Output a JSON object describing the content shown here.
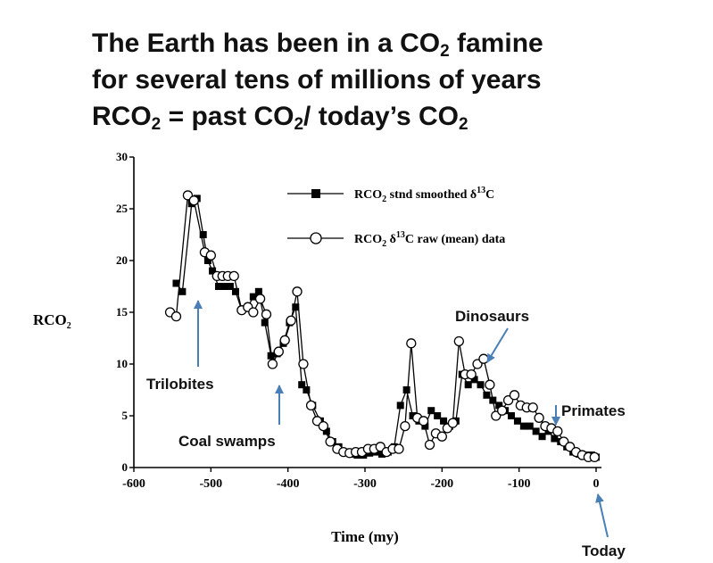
{
  "slide": {
    "title_line1": {
      "before": "The Earth has been in a CO",
      "sub": "2",
      "after": " famine"
    },
    "title_line2": "for several tens of millions of years",
    "title_line3": {
      "a": "RCO",
      "a_sub": "2",
      "b": " = past CO",
      "b_sub": "2",
      "c": "/ today’s CO",
      "c_sub": "2"
    }
  },
  "colors": {
    "title": "#111111",
    "axis": "#000000",
    "annotation_arrow": "#4a7fb5"
  },
  "chart_data": {
    "type": "line",
    "xlabel": "Time (my)",
    "ylabel": {
      "main": "RCO",
      "sub": "2"
    },
    "xlim": [
      -600,
      0
    ],
    "ylim": [
      0,
      30
    ],
    "x_ticks": [
      {
        "value": -600,
        "label": "-600"
      },
      {
        "value": -500,
        "label": "-500"
      },
      {
        "value": -400,
        "label": "-400"
      },
      {
        "value": -300,
        "label": "-300"
      },
      {
        "value": -200,
        "label": "-200"
      },
      {
        "value": -100,
        "label": "-100"
      },
      {
        "value": 0,
        "label": "0"
      }
    ],
    "y_ticks": [
      {
        "value": 0,
        "label": "0"
      },
      {
        "value": 5,
        "label": "5"
      },
      {
        "value": 10,
        "label": "10"
      },
      {
        "value": 15,
        "label": "15"
      },
      {
        "value": 20,
        "label": "20"
      },
      {
        "value": 25,
        "label": "25"
      },
      {
        "value": 30,
        "label": "30"
      }
    ],
    "grid": false,
    "legend_position": "top-right",
    "series": [
      {
        "name": "RCO2 stnd smoothed δ13C",
        "legend": {
          "a": "RCO",
          "a_sub": "2",
          "b": " stnd smoothed δ",
          "b_sup": "13",
          "c": "C"
        },
        "marker": "filled-square",
        "x": [
          -545,
          -537,
          -525,
          -518,
          -510,
          -504,
          -498,
          -490,
          -482,
          -475,
          -468,
          -460,
          -452,
          -445,
          -438,
          -430,
          -422,
          -414,
          -406,
          -398,
          -390,
          -382,
          -376,
          -368,
          -358,
          -350,
          -342,
          -334,
          -326,
          -318,
          -310,
          -302,
          -294,
          -286,
          -278,
          -270,
          -262,
          -254,
          -246,
          -238,
          -230,
          -222,
          -214,
          -206,
          -198,
          -190,
          -182,
          -174,
          -166,
          -158,
          -150,
          -142,
          -134,
          -126,
          -118,
          -110,
          -102,
          -94,
          -86,
          -78,
          -70,
          -62,
          -54,
          -46,
          -38,
          -30,
          -22,
          -14,
          -6,
          0
        ],
        "y": [
          17.8,
          17.0,
          25.5,
          26.0,
          22.5,
          20.0,
          19.0,
          17.5,
          17.5,
          17.5,
          17.0,
          15.2,
          15.5,
          16.5,
          17.0,
          14.0,
          10.8,
          11.0,
          12.0,
          14.0,
          15.5,
          8.0,
          7.5,
          6.0,
          4.5,
          3.5,
          2.5,
          2.0,
          1.5,
          1.3,
          1.2,
          1.2,
          1.4,
          1.5,
          1.3,
          1.5,
          2.0,
          6.0,
          7.5,
          5.0,
          4.5,
          4.0,
          5.5,
          5.0,
          4.5,
          4.0,
          4.5,
          9.0,
          8.0,
          8.5,
          8.0,
          7.0,
          6.5,
          6.0,
          5.5,
          5.0,
          4.5,
          4.0,
          4.0,
          3.5,
          3.0,
          3.5,
          2.8,
          2.5,
          2.0,
          1.5,
          1.3,
          1.2,
          1.2,
          1.0
        ]
      },
      {
        "name": "RCO2 δ13C raw (mean) data",
        "legend": {
          "a": "RCO",
          "a_sub": "2",
          "b": " δ",
          "b_sup": "13",
          "c": "C raw (mean) data"
        },
        "marker": "open-circle",
        "x": [
          -553,
          -545,
          -530,
          -522,
          -508,
          -500,
          -492,
          -485,
          -478,
          -470,
          -460,
          -452,
          -445,
          -436,
          -428,
          -420,
          -412,
          -404,
          -396,
          -388,
          -380,
          -370,
          -362,
          -354,
          -345,
          -336,
          -328,
          -320,
          -312,
          -304,
          -296,
          -288,
          -280,
          -272,
          -264,
          -256,
          -248,
          -240,
          -232,
          -224,
          -216,
          -208,
          -200,
          -193,
          -186,
          -178,
          -170,
          -162,
          -154,
          -146,
          -138,
          -130,
          -122,
          -114,
          -106,
          -98,
          -90,
          -82,
          -74,
          -66,
          -58,
          -50,
          -42,
          -34,
          -26,
          -18,
          -10,
          -2
        ],
        "y": [
          15.0,
          14.6,
          26.3,
          25.8,
          20.8,
          20.5,
          18.5,
          18.5,
          18.5,
          18.5,
          15.2,
          15.5,
          15.0,
          16.3,
          14.8,
          10.0,
          11.2,
          12.3,
          14.2,
          17.0,
          10.0,
          6.0,
          4.5,
          4.0,
          2.5,
          1.8,
          1.5,
          1.4,
          1.5,
          1.5,
          1.8,
          1.8,
          2.0,
          1.5,
          1.8,
          1.8,
          4.0,
          12.0,
          4.8,
          4.5,
          2.2,
          3.3,
          3.0,
          3.8,
          4.3,
          12.2,
          9.0,
          9.0,
          10.0,
          10.5,
          8.0,
          5.0,
          5.5,
          6.5,
          7.0,
          6.0,
          5.8,
          5.8,
          4.8,
          4.0,
          3.8,
          3.5,
          2.5,
          2.0,
          1.5,
          1.2,
          1.0,
          1.0
        ]
      }
    ],
    "annotations": [
      {
        "text": "Trilobites",
        "arrow_to_x": -525
      },
      {
        "text": "Coal swamps",
        "arrow_to_x": -414
      },
      {
        "text": "Dinosaurs",
        "arrow_to_x": -140
      },
      {
        "text": "Primates",
        "arrow_to_x": -58
      },
      {
        "text": "Today",
        "arrow_to_x": 0
      }
    ]
  }
}
